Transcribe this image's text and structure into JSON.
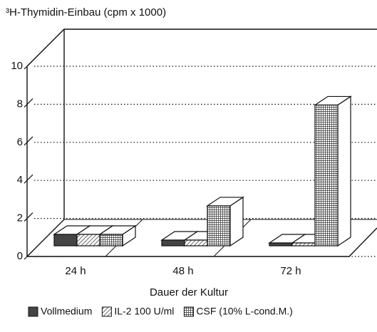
{
  "chart_data": {
    "type": "bar3d",
    "y_title": "³H-Thymidin-Einbau (cpm x 1000)",
    "x_title": "Dauer der Kultur",
    "categories": [
      "24 h",
      "48 h",
      "72 h"
    ],
    "series": [
      {
        "name": "Vollmedium",
        "color": "#444444",
        "pattern": "solid",
        "values": [
          0.6,
          0.3,
          0.15
        ]
      },
      {
        "name": "IL-2 100 U/ml",
        "color": "#444444",
        "pattern": "hatch",
        "values": [
          0.6,
          0.3,
          0.15
        ]
      },
      {
        "name": "CSF (10% L-cond.M.)",
        "color": "#444444",
        "pattern": "grid",
        "values": [
          0.6,
          2.1,
          7.4
        ]
      }
    ],
    "ylim": [
      0,
      10
    ],
    "yticks": [
      0,
      2,
      4,
      6,
      8,
      10
    ],
    "grid": true,
    "legend": "bottom"
  }
}
